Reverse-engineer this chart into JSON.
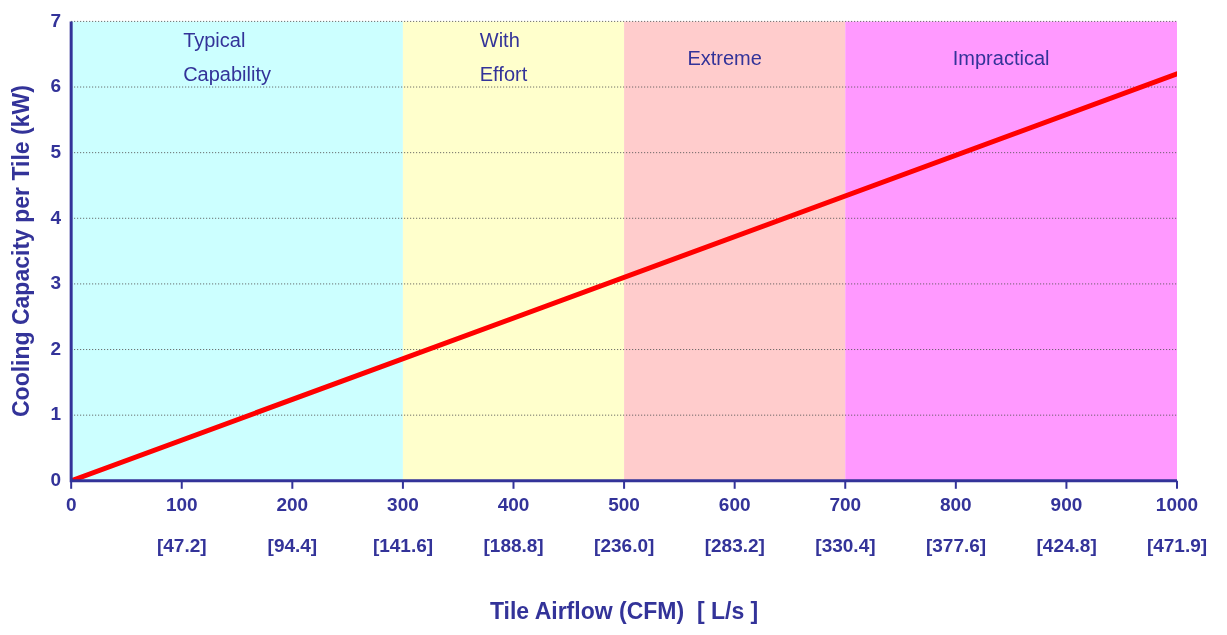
{
  "chart_data": {
    "type": "line",
    "xlabel": "Tile Airflow (CFM)  [ L/s ]",
    "ylabel": "Cooling Capacity per Tile (kW)",
    "series": [
      {
        "color": "#ff0000",
        "x": [
          0,
          1000
        ],
        "values": [
          0,
          6.2
        ]
      }
    ],
    "xlim": [
      0,
      1000
    ],
    "xticks": [
      0,
      100,
      200,
      300,
      400,
      500,
      600,
      700,
      800,
      900,
      1000
    ],
    "x2lim": [
      0,
      471.9
    ],
    "x2ticks": [
      {
        "value": 0,
        "label": null
      },
      {
        "value": 47.2,
        "label": "[47.2]"
      },
      {
        "value": 94.4,
        "label": "[94.4]"
      },
      {
        "value": 141.6,
        "label": "[141.6]"
      },
      {
        "value": 188.8,
        "label": "[188.8]"
      },
      {
        "value": 236.0,
        "label": "[236.0]"
      },
      {
        "value": 283.2,
        "label": "[283.2]"
      },
      {
        "value": 330.4,
        "label": "[330.4]"
      },
      {
        "value": 377.6,
        "label": "[377.6]"
      },
      {
        "value": 424.8,
        "label": "[424.8]"
      },
      {
        "value": 471.9,
        "label": "[471.9]"
      }
    ],
    "ylim": [
      0,
      7
    ],
    "yticks": [
      0,
      1,
      2,
      3,
      4,
      5,
      6,
      7
    ],
    "bands": [
      {
        "axis": "x",
        "from": 0,
        "to": 300,
        "label": "Typical\nCapability",
        "color": "#ccffff"
      },
      {
        "axis": "x",
        "from": 300,
        "to": 500,
        "label": "With\nEffort",
        "color": "#ffffcc"
      },
      {
        "axis": "x",
        "from": 500,
        "to": 700,
        "label": "Extreme",
        "color": "#ffcccc"
      },
      {
        "axis": "x",
        "from": 700,
        "to": 1000,
        "label": "Impractical",
        "color": "#ff99ff"
      }
    ],
    "grid": "y",
    "legend": false,
    "marker": "none",
    "line_style": "solid"
  }
}
